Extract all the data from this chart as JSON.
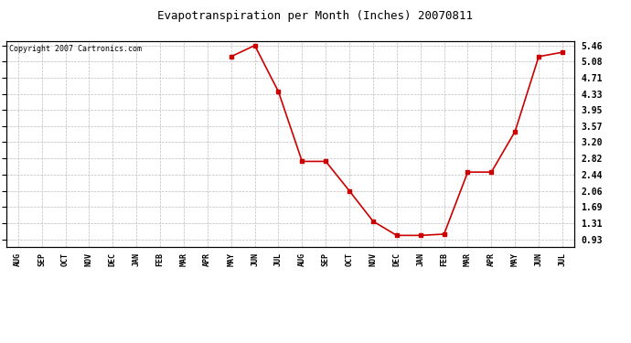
{
  "title": "Evapotranspiration per Month (Inches) 20070811",
  "copyright": "Copyright 2007 Cartronics.com",
  "months": [
    "AUG",
    "SEP",
    "OCT",
    "NOV",
    "DEC",
    "JAN",
    "FEB",
    "MAR",
    "APR",
    "MAY",
    "JUN",
    "JUL",
    "AUG",
    "SEP",
    "OCT",
    "NOV",
    "DEC",
    "JAN",
    "FEB",
    "MAR",
    "APR",
    "MAY",
    "JUN",
    "JUL"
  ],
  "values": [
    null,
    null,
    null,
    null,
    null,
    null,
    null,
    null,
    null,
    5.2,
    5.46,
    4.38,
    2.75,
    2.75,
    2.06,
    1.35,
    1.02,
    1.02,
    1.05,
    2.5,
    2.5,
    3.45,
    5.2,
    5.3
  ],
  "yticks": [
    0.93,
    1.31,
    1.69,
    2.06,
    2.44,
    2.82,
    3.2,
    3.57,
    3.95,
    4.33,
    4.71,
    5.08,
    5.46
  ],
  "ylim_min": 0.75,
  "ylim_max": 5.56,
  "line_color": "#cc0000",
  "marker": "s",
  "marker_size": 3,
  "bg_color": "#ffffff",
  "grid_color": "#bbbbbb",
  "title_fontsize": 9,
  "copyright_fontsize": 6,
  "tick_fontsize": 6,
  "ytick_fontsize": 7
}
